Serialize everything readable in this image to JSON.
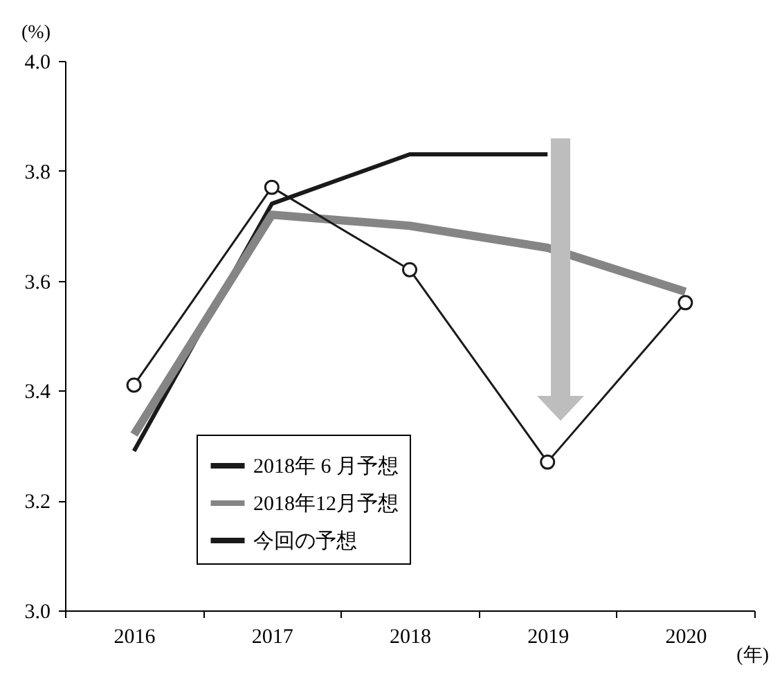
{
  "chart_data": {
    "type": "line",
    "ylabel": "(%)",
    "xlabel": "(年)",
    "categories": [
      "2016",
      "2017",
      "2018",
      "2019",
      "2020"
    ],
    "series": [
      {
        "name": "2018年 6 月予想",
        "color": "#1a1a1a",
        "values": [
          3.29,
          3.74,
          3.83,
          3.83,
          null
        ],
        "marker": "none"
      },
      {
        "name": "2018年12月予想",
        "color": "#858585",
        "values": [
          3.32,
          3.72,
          3.7,
          3.66,
          3.58
        ],
        "marker": "none"
      },
      {
        "name": "今回の予想",
        "color": "#1a1a1a",
        "values": [
          3.41,
          3.77,
          3.62,
          3.27,
          3.56
        ],
        "marker": "circle"
      }
    ],
    "ylim": [
      3.0,
      4.0
    ],
    "yticks": [
      {
        "value": 3.0,
        "label": "3.0"
      },
      3.2,
      3.4,
      3.6,
      3.8,
      {
        "value": 4.0,
        "label": "4.0"
      }
    ],
    "grid": false,
    "legend": "bottom left"
  }
}
